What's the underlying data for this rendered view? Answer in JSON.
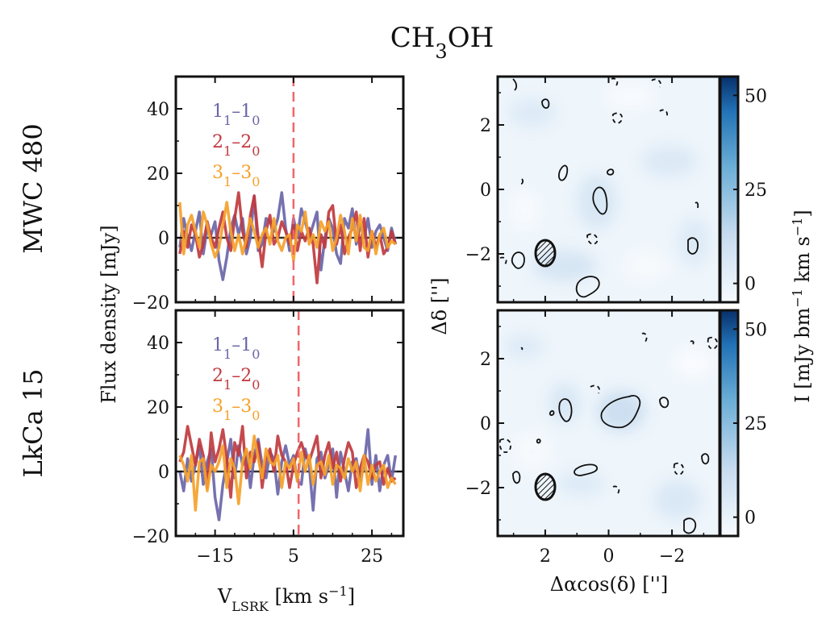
{
  "title": "CH3OH",
  "colors": {
    "blue": "#6a65a8",
    "red": "#c0393e",
    "orange": "#f5a12a",
    "velocity_marker": "#f0666a"
  },
  "rows": [
    {
      "name": "MWC 480",
      "vsys": 5.0
    },
    {
      "name": "LkCa 15",
      "vsys": 6.3
    }
  ],
  "spectra": {
    "ylabel": "Flux density [mJy]",
    "xlabel": "V_LSRK [km s^-1]",
    "xlim": [
      -25,
      33
    ],
    "ylim": [
      -20,
      50
    ],
    "xticks": [
      -15,
      5,
      25
    ],
    "yticks": [
      -20,
      0,
      20,
      40
    ],
    "legend": [
      "1_1-1_0",
      "2_1-2_0",
      "3_1-3_0"
    ]
  },
  "images": {
    "xlabel": "Δαcos(δ) ['']",
    "ylabel": "Δδ ['']",
    "xlim": [
      3.5,
      -3.5
    ],
    "ylim": [
      -3.5,
      3.5
    ],
    "xticks": [
      -2,
      0,
      2
    ],
    "yticks": [
      -2,
      0,
      2
    ],
    "colorbar": {
      "label": "I [mJy bm^-1 km s^-1]",
      "range": [
        -5,
        55
      ],
      "ticks": [
        0,
        25,
        50
      ]
    }
  },
  "chart_data": [
    {
      "type": "line",
      "panel": "MWC 480 spectrum",
      "x": [
        -24,
        -23,
        -22,
        -21,
        -20,
        -19,
        -18,
        -17,
        -16,
        -15,
        -14,
        -13,
        -12,
        -11,
        -10,
        -9,
        -8,
        -7,
        -6,
        -5,
        -4,
        -3,
        -2,
        -1,
        0,
        1,
        2,
        3,
        4,
        5,
        6,
        7,
        8,
        9,
        10,
        11,
        12,
        13,
        14,
        15,
        16,
        17,
        18,
        19,
        20,
        21,
        22,
        23,
        24,
        25,
        26,
        27,
        28,
        29,
        30,
        31
      ],
      "series": [
        {
          "name": "1_1-1_0",
          "values": [
            -3,
            6,
            0,
            -4,
            2,
            8,
            -5,
            3,
            1,
            5,
            -7,
            -13,
            -6,
            3,
            7,
            1,
            6,
            -5,
            0,
            13,
            -4,
            -2,
            6,
            5,
            2,
            6,
            14,
            3,
            -4,
            6,
            0,
            9,
            5,
            0,
            4,
            8,
            -10,
            0,
            6,
            3,
            -5,
            -8,
            6,
            3,
            9,
            -2,
            4,
            0,
            6,
            -3,
            2,
            4,
            0,
            -4,
            3,
            -2
          ]
        },
        {
          "name": "2_1-2_0",
          "values": [
            -5,
            2,
            -3,
            4,
            1,
            -6,
            -2,
            5,
            0,
            -3,
            3,
            8,
            0,
            -4,
            6,
            14,
            2,
            -3,
            7,
            13,
            0,
            -9,
            2,
            7,
            -2,
            0,
            5,
            2,
            -2,
            4,
            -4,
            2,
            -1,
            3,
            -2,
            -14,
            1,
            -3,
            8,
            10,
            -2,
            4,
            -5,
            0,
            3,
            8,
            -4,
            6,
            -6,
            2,
            -3,
            1,
            -5,
            -3,
            2,
            -2
          ]
        },
        {
          "name": "3_1-3_0",
          "values": [
            11,
            -5,
            4,
            7,
            2,
            -3,
            8,
            4,
            -2,
            -6,
            -3,
            4,
            11,
            2,
            -4,
            1,
            -5,
            0,
            6,
            2,
            -3,
            1,
            3,
            -2,
            6,
            -1,
            -4,
            0,
            1,
            -7,
            4,
            2,
            8,
            -2,
            1,
            -3,
            5,
            2,
            5,
            -4,
            0,
            7,
            2,
            -5,
            6,
            -1,
            7,
            -3,
            -4,
            2,
            -5,
            1,
            3,
            -3,
            -1,
            -2
          ]
        }
      ]
    },
    {
      "type": "line",
      "panel": "LkCa 15 spectrum",
      "x": [
        -24,
        -23,
        -22,
        -21,
        -20,
        -19,
        -18,
        -17,
        -16,
        -15,
        -14,
        -13,
        -12,
        -11,
        -10,
        -9,
        -8,
        -7,
        -6,
        -5,
        -4,
        -3,
        -2,
        -1,
        0,
        1,
        2,
        3,
        4,
        5,
        6,
        7,
        8,
        9,
        10,
        11,
        12,
        13,
        14,
        15,
        16,
        17,
        18,
        19,
        20,
        21,
        22,
        23,
        24,
        25,
        26,
        27,
        28,
        29,
        30,
        31
      ],
      "series": [
        {
          "name": "1_1-1_0",
          "values": [
            0,
            -6,
            4,
            -3,
            2,
            8,
            -4,
            3,
            7,
            -8,
            -15,
            -4,
            3,
            10,
            -2,
            8,
            2,
            6,
            -5,
            5,
            10,
            2,
            -2,
            6,
            4,
            -7,
            3,
            8,
            2,
            5,
            -3,
            -4,
            7,
            2,
            -12,
            4,
            6,
            -2,
            2,
            7,
            -8,
            6,
            0,
            -6,
            3,
            4,
            -3,
            2,
            13,
            -4,
            5,
            -6,
            2,
            5,
            -3,
            5
          ]
        },
        {
          "name": "2_1-2_0",
          "values": [
            3,
            6,
            14,
            8,
            2,
            10,
            5,
            -5,
            12,
            3,
            7,
            13,
            4,
            -8,
            9,
            5,
            14,
            -2,
            6,
            3,
            9,
            -5,
            4,
            7,
            0,
            11,
            5,
            3,
            -5,
            2,
            6,
            9,
            5,
            3,
            7,
            11,
            -2,
            5,
            9,
            1,
            6,
            -3,
            4,
            9,
            6,
            -5,
            1,
            5,
            3,
            -2,
            2,
            3,
            -4,
            1,
            -3,
            -2
          ]
        },
        {
          "name": "3_1-3_0",
          "values": [
            5,
            2,
            -3,
            5,
            -12,
            3,
            4,
            -6,
            2,
            0,
            3,
            8,
            -5,
            4,
            1,
            -10,
            3,
            7,
            1,
            11,
            4,
            -2,
            7,
            3,
            2,
            5,
            -5,
            3,
            1,
            4,
            -3,
            6,
            0,
            5,
            -4,
            2,
            3,
            -1,
            5,
            -4,
            2,
            1,
            -2,
            4,
            0,
            3,
            -6,
            5,
            -4,
            2,
            -3,
            0,
            2,
            -5,
            -2,
            -4
          ]
        }
      ]
    }
  ]
}
